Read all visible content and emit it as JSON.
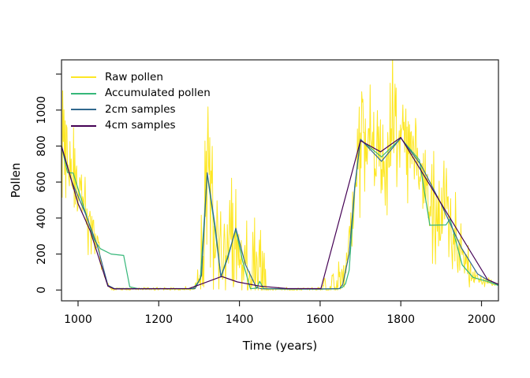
{
  "chart_data": {
    "type": "line",
    "title": "",
    "xlabel": "Time (years)",
    "ylabel": "Pollen",
    "grid": false,
    "legend_position": "top-left",
    "x_range": [
      959,
      2042
    ],
    "y_range": [
      -60,
      1279
    ],
    "x_ticks": [
      {
        "value": 1000,
        "label": "1000"
      },
      {
        "value": 1200,
        "label": "1200"
      },
      {
        "value": 1400,
        "label": "1400"
      },
      {
        "value": 1600,
        "label": "1600"
      },
      {
        "value": 1800,
        "label": "1800"
      },
      {
        "value": 2000,
        "label": "2000"
      }
    ],
    "y_ticks": [
      {
        "value": 0,
        "label": "0"
      },
      {
        "value": 200,
        "label": "200"
      },
      {
        "value": 400,
        "label": "400"
      },
      {
        "value": 600,
        "label": "600"
      },
      {
        "value": 800,
        "label": "800"
      },
      {
        "value": 1000,
        "label": "1000"
      },
      {
        "value": 1200,
        "label": ""
      }
    ],
    "legend": [
      {
        "label": "Raw pollen",
        "color": "#FDE725"
      },
      {
        "label": "Accumulated pollen",
        "color": "#35B779"
      },
      {
        "label": "2cm samples",
        "color": "#31688E"
      },
      {
        "label": "4cm samples",
        "color": "#440154"
      }
    ],
    "series": [
      {
        "name": "Raw pollen",
        "color": "#FDE725",
        "width": 1,
        "kind": "noisy",
        "mean_vertices": [
          [
            959,
            800
          ],
          [
            990,
            630
          ],
          [
            1020,
            420
          ],
          [
            1048,
            240
          ],
          [
            1068,
            60
          ],
          [
            1080,
            6
          ],
          [
            1288,
            5
          ],
          [
            1305,
            130
          ],
          [
            1320,
            630
          ],
          [
            1340,
            320
          ],
          [
            1356,
            130
          ],
          [
            1372,
            200
          ],
          [
            1391,
            320
          ],
          [
            1407,
            160
          ],
          [
            1425,
            60
          ],
          [
            1452,
            90
          ],
          [
            1465,
            5
          ],
          [
            1520,
            3
          ],
          [
            1592,
            5
          ],
          [
            1615,
            20
          ],
          [
            1640,
            30
          ],
          [
            1658,
            60
          ],
          [
            1675,
            300
          ],
          [
            1690,
            640
          ],
          [
            1700,
            820
          ],
          [
            1727,
            780
          ],
          [
            1752,
            745
          ],
          [
            1777,
            830
          ],
          [
            1800,
            840
          ],
          [
            1845,
            730
          ],
          [
            1872,
            420
          ],
          [
            1920,
            430
          ],
          [
            1952,
            190
          ],
          [
            1982,
            70
          ],
          [
            2015,
            48
          ],
          [
            2042,
            32
          ]
        ],
        "noise": {
          "seed": 42,
          "step_years": 1.5,
          "sd_factor": 0.19,
          "sd_base": 4,
          "sd_min": 4,
          "clip_min": 0,
          "sd_boost_vertices": [
            [
              1290,
              0
            ],
            [
              1312,
              130
            ],
            [
              1452,
              130
            ],
            [
              1475,
              0
            ],
            [
              1598,
              0
            ],
            [
              1615,
              35
            ],
            [
              1658,
              35
            ],
            [
              1668,
              0
            ],
            [
              1858,
              0
            ],
            [
              1878,
              60
            ],
            [
              1958,
              60
            ],
            [
              1980,
              0
            ]
          ]
        }
      },
      {
        "name": "Accumulated pollen",
        "color": "#35B779",
        "width": 1.2,
        "kind": "polyline",
        "vertices": [
          [
            959,
            800
          ],
          [
            974,
            652
          ],
          [
            988,
            650
          ],
          [
            1015,
            455
          ],
          [
            1040,
            280
          ],
          [
            1055,
            230
          ],
          [
            1082,
            200
          ],
          [
            1113,
            192
          ],
          [
            1128,
            18
          ],
          [
            1150,
            7
          ],
          [
            1285,
            7
          ],
          [
            1303,
            60
          ],
          [
            1320,
            645
          ],
          [
            1338,
            360
          ],
          [
            1354,
            75
          ],
          [
            1370,
            180
          ],
          [
            1391,
            335
          ],
          [
            1408,
            160
          ],
          [
            1427,
            8
          ],
          [
            1443,
            10
          ],
          [
            1450,
            48
          ],
          [
            1460,
            8
          ],
          [
            1520,
            5
          ],
          [
            1600,
            5
          ],
          [
            1645,
            7
          ],
          [
            1655,
            14
          ],
          [
            1663,
            35
          ],
          [
            1672,
            110
          ],
          [
            1686,
            570
          ],
          [
            1700,
            835
          ],
          [
            1752,
            740
          ],
          [
            1800,
            843
          ],
          [
            1846,
            723
          ],
          [
            1872,
            360
          ],
          [
            1912,
            362
          ],
          [
            1922,
            395
          ],
          [
            1952,
            140
          ],
          [
            1979,
            70
          ],
          [
            2014,
            48
          ],
          [
            2042,
            25
          ]
        ]
      },
      {
        "name": "2cm samples",
        "color": "#31688E",
        "width": 1.2,
        "kind": "polyline",
        "vertices": [
          [
            959,
            800
          ],
          [
            985,
            600
          ],
          [
            1020,
            415
          ],
          [
            1048,
            245
          ],
          [
            1074,
            26
          ],
          [
            1090,
            8
          ],
          [
            1290,
            8
          ],
          [
            1306,
            80
          ],
          [
            1320,
            652
          ],
          [
            1340,
            350
          ],
          [
            1354,
            72
          ],
          [
            1372,
            185
          ],
          [
            1391,
            343
          ],
          [
            1415,
            140
          ],
          [
            1442,
            14
          ],
          [
            1455,
            7
          ],
          [
            1520,
            6
          ],
          [
            1600,
            6
          ],
          [
            1648,
            8
          ],
          [
            1656,
            30
          ],
          [
            1672,
            200
          ],
          [
            1686,
            580
          ],
          [
            1700,
            838
          ],
          [
            1752,
            715
          ],
          [
            1800,
            845
          ],
          [
            1850,
            695
          ],
          [
            1900,
            478
          ],
          [
            1950,
            235
          ],
          [
            1990,
            90
          ],
          [
            2015,
            56
          ],
          [
            2042,
            30
          ]
        ]
      },
      {
        "name": "4cm samples",
        "color": "#440154",
        "width": 1.2,
        "kind": "polyline",
        "vertices": [
          [
            959,
            800
          ],
          [
            1000,
            480
          ],
          [
            1030,
            330
          ],
          [
            1074,
            22
          ],
          [
            1090,
            6
          ],
          [
            1275,
            8
          ],
          [
            1356,
            75
          ],
          [
            1395,
            45
          ],
          [
            1450,
            22
          ],
          [
            1520,
            8
          ],
          [
            1602,
            8
          ],
          [
            1700,
            830
          ],
          [
            1750,
            768
          ],
          [
            1800,
            848
          ],
          [
            2015,
            58
          ],
          [
            2042,
            32
          ]
        ]
      }
    ]
  }
}
